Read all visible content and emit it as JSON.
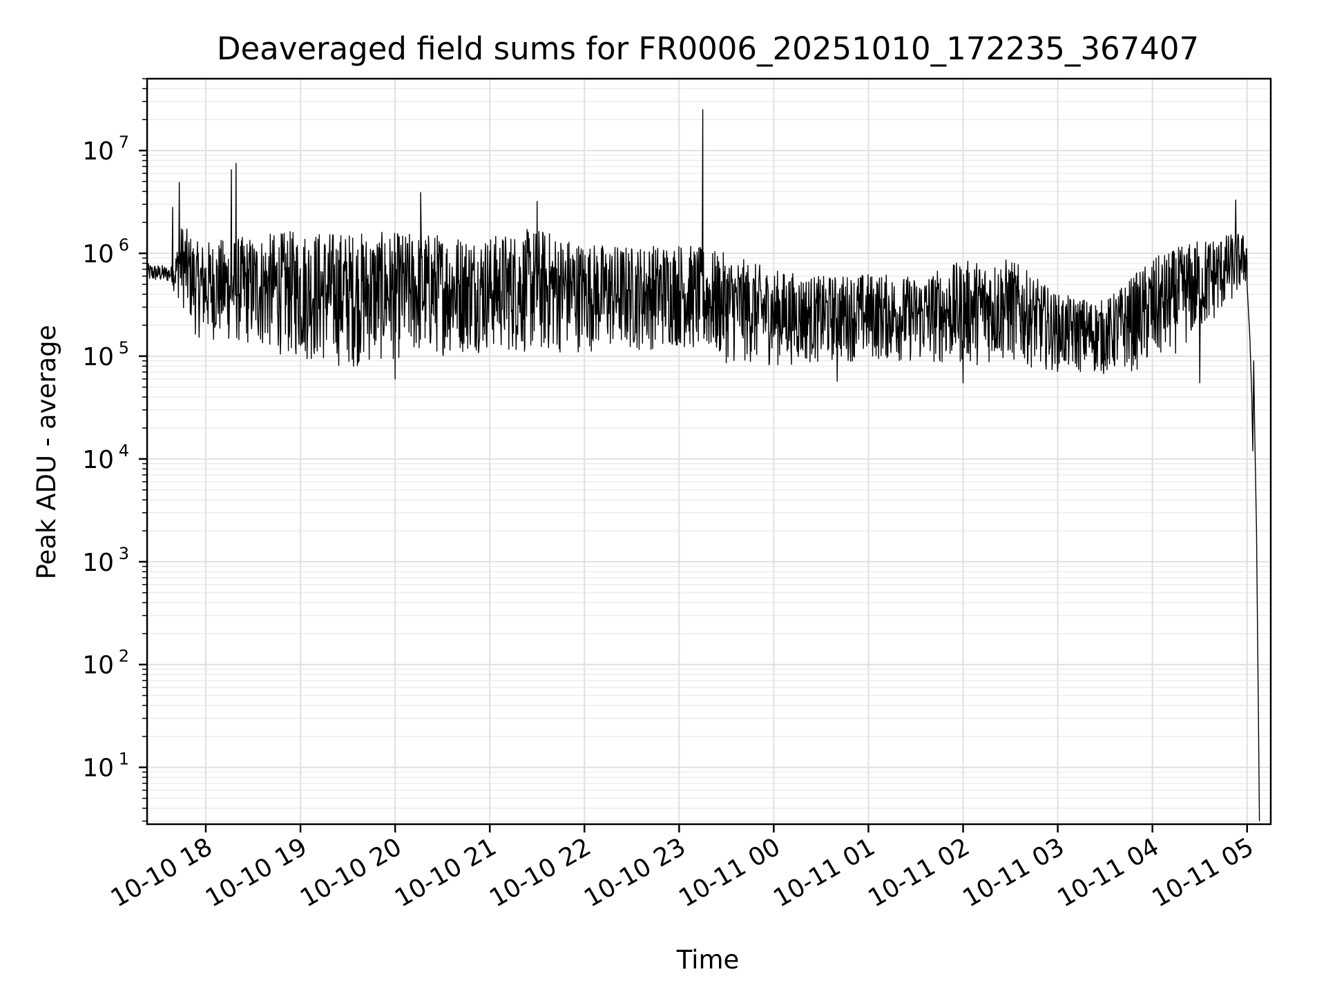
{
  "chart_data": {
    "type": "line",
    "title": "Deaveraged field sums for FR0006_20251010_172235_367407",
    "xlabel": "Time",
    "ylabel": "Peak ADU - average",
    "yscale": "log",
    "ylim": [
      2.8,
      50000000
    ],
    "xlim_hours": [
      17.38,
      29.25
    ],
    "grid": true,
    "legend": "none",
    "x_ticks": [
      {
        "hour": 18,
        "label": "10-10 18"
      },
      {
        "hour": 19,
        "label": "10-10 19"
      },
      {
        "hour": 20,
        "label": "10-10 20"
      },
      {
        "hour": 21,
        "label": "10-10 21"
      },
      {
        "hour": 22,
        "label": "10-10 22"
      },
      {
        "hour": 23,
        "label": "10-10 23"
      },
      {
        "hour": 24,
        "label": "10-11 00"
      },
      {
        "hour": 25,
        "label": "10-11 01"
      },
      {
        "hour": 26,
        "label": "10-11 02"
      },
      {
        "hour": 27,
        "label": "10-11 03"
      },
      {
        "hour": 28,
        "label": "10-11 04"
      },
      {
        "hour": 29,
        "label": "10-11 05"
      }
    ],
    "y_ticks": [
      {
        "value": 10,
        "base": "10",
        "exp": "1"
      },
      {
        "value": 100,
        "base": "10",
        "exp": "2"
      },
      {
        "value": 1000,
        "base": "10",
        "exp": "3"
      },
      {
        "value": 10000,
        "base": "10",
        "exp": "4"
      },
      {
        "value": 100000,
        "base": "10",
        "exp": "5"
      },
      {
        "value": 1000000,
        "base": "10",
        "exp": "6"
      },
      {
        "value": 10000000,
        "base": "10",
        "exp": "7"
      }
    ],
    "series": [
      {
        "name": "Peak ADU - average",
        "color": "#000000",
        "envelope": [
          {
            "hour": 17.38,
            "low": 450000,
            "high": 800000
          },
          {
            "hour": 17.65,
            "low": 450000,
            "high": 750000
          },
          {
            "hour": 17.75,
            "low": 300000,
            "high": 2000000
          },
          {
            "hour": 17.9,
            "low": 150000,
            "high": 1300000
          },
          {
            "hour": 18.5,
            "low": 120000,
            "high": 1500000
          },
          {
            "hour": 19.0,
            "low": 90000,
            "high": 1700000
          },
          {
            "hour": 19.5,
            "low": 75000,
            "high": 1650000
          },
          {
            "hour": 20.0,
            "low": 90000,
            "high": 1600000
          },
          {
            "hour": 20.5,
            "low": 100000,
            "high": 1600000
          },
          {
            "hour": 21.0,
            "low": 110000,
            "high": 1500000
          },
          {
            "hour": 21.5,
            "low": 100000,
            "high": 1800000
          },
          {
            "hour": 22.0,
            "low": 110000,
            "high": 1300000
          },
          {
            "hour": 22.5,
            "low": 110000,
            "high": 1200000
          },
          {
            "hour": 23.0,
            "low": 120000,
            "high": 1300000
          },
          {
            "hour": 23.5,
            "low": 85000,
            "high": 1000000
          },
          {
            "hour": 24.0,
            "low": 80000,
            "high": 700000
          },
          {
            "hour": 24.5,
            "low": 85000,
            "high": 600000
          },
          {
            "hour": 25.0,
            "low": 90000,
            "high": 650000
          },
          {
            "hour": 25.5,
            "low": 85000,
            "high": 600000
          },
          {
            "hour": 26.0,
            "low": 80000,
            "high": 850000
          },
          {
            "hour": 26.5,
            "low": 85000,
            "high": 900000
          },
          {
            "hour": 27.0,
            "low": 70000,
            "high": 400000
          },
          {
            "hour": 27.5,
            "low": 65000,
            "high": 350000
          },
          {
            "hour": 28.0,
            "low": 75000,
            "high": 900000
          },
          {
            "hour": 28.5,
            "low": 150000,
            "high": 1400000
          },
          {
            "hour": 28.92,
            "low": 400000,
            "high": 1600000
          },
          {
            "hour": 29.0,
            "low": 500000,
            "high": 1500000
          }
        ],
        "spikes": [
          {
            "hour": 17.65,
            "value": 2800000
          },
          {
            "hour": 17.72,
            "value": 4900000
          },
          {
            "hour": 18.27,
            "value": 6500000
          },
          {
            "hour": 18.32,
            "value": 7500000
          },
          {
            "hour": 20.27,
            "value": 3900000
          },
          {
            "hour": 21.5,
            "value": 3200000
          },
          {
            "hour": 23.25,
            "value": 25000000
          },
          {
            "hour": 28.88,
            "value": 3300000
          }
        ],
        "dips": [
          {
            "hour": 20.0,
            "value": 60000
          },
          {
            "hour": 24.67,
            "value": 57000
          },
          {
            "hour": 26.0,
            "value": 55000
          },
          {
            "hour": 28.5,
            "value": 55000
          }
        ],
        "tail": [
          {
            "hour": 29.0,
            "value": 500000
          },
          {
            "hour": 29.03,
            "value": 150000
          },
          {
            "hour": 29.05,
            "value": 40000
          },
          {
            "hour": 29.06,
            "value": 12000
          },
          {
            "hour": 29.07,
            "value": 90000
          },
          {
            "hour": 29.08,
            "value": 20000
          },
          {
            "hour": 29.1,
            "value": 2000
          },
          {
            "hour": 29.11,
            "value": 230
          },
          {
            "hour": 29.12,
            "value": 30
          },
          {
            "hour": 29.13,
            "value": 3
          }
        ]
      }
    ]
  }
}
